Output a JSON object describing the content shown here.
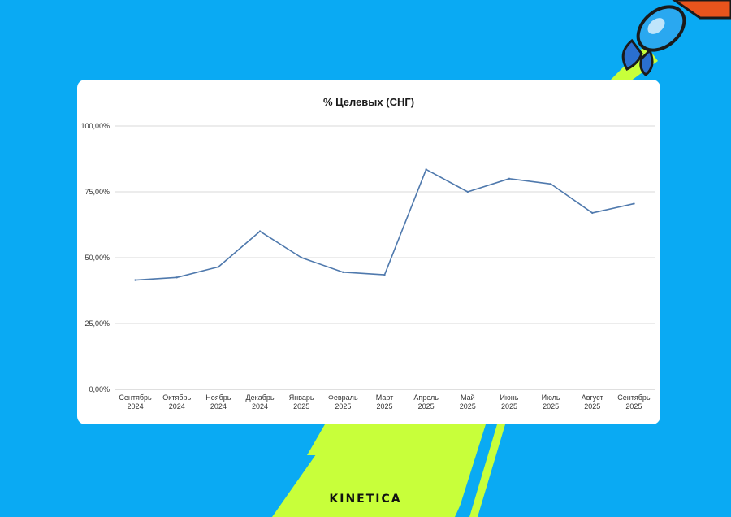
{
  "brand": {
    "name": "KINETICA"
  },
  "colors": {
    "background": "#0aaaf3",
    "accent_green": "#c8ff3a",
    "line": "#4f79ad",
    "grid": "#d9d9d9"
  },
  "chart_data": {
    "type": "line",
    "title": "% Целевых (СНГ)",
    "xlabel": "",
    "ylabel": "",
    "categories": [
      [
        "Сентябрь",
        "2024"
      ],
      [
        "Октябрь",
        "2024"
      ],
      [
        "Ноябрь",
        "2024"
      ],
      [
        "Декабрь",
        "2024"
      ],
      [
        "Январь",
        "2025"
      ],
      [
        "Февраль",
        "2025"
      ],
      [
        "Март",
        "2025"
      ],
      [
        "Апрель",
        "2025"
      ],
      [
        "Май",
        "2025"
      ],
      [
        "Июнь",
        "2025"
      ],
      [
        "Июль",
        "2025"
      ],
      [
        "Август",
        "2025"
      ],
      [
        "Сентябрь",
        "2025"
      ]
    ],
    "values": [
      41.5,
      42.5,
      46.5,
      60,
      50,
      44.5,
      43.5,
      83.5,
      75,
      80,
      78,
      67,
      70.5
    ],
    "ylim": [
      0,
      100
    ],
    "yticks": [
      0,
      25,
      50,
      75,
      100
    ],
    "ytick_labels": [
      "0,00%",
      "25,00%",
      "50,00%",
      "75,00%",
      "100,00%"
    ],
    "grid": true,
    "legend": "none"
  }
}
